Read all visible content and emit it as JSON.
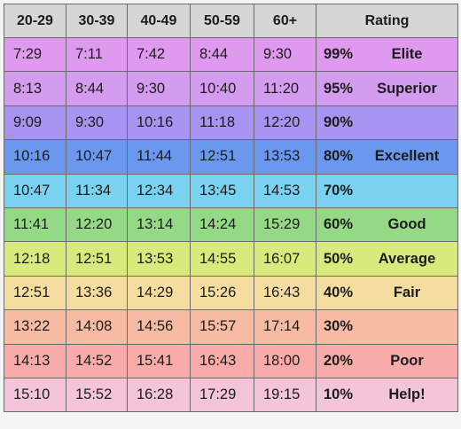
{
  "table": {
    "headers": [
      "20-29",
      "30-39",
      "40-49",
      "50-59",
      "60+",
      "Rating"
    ],
    "rows": [
      {
        "color": "#df99ee",
        "times": [
          "7:29",
          "7:11",
          "7:42",
          "8:44",
          "9:30"
        ],
        "percent": "99%",
        "label": "Elite"
      },
      {
        "color": "#d49cee",
        "times": [
          "8:13",
          "8:44",
          "9:30",
          "10:40",
          "11:20"
        ],
        "percent": "95%",
        "label": "Superior"
      },
      {
        "color": "#a794f1",
        "times": [
          "9:09",
          "9:30",
          "10:16",
          "11:18",
          "12:20"
        ],
        "percent": "90%",
        "label": ""
      },
      {
        "color": "#6a98ef",
        "times": [
          "10:16",
          "10:47",
          "11:44",
          "12:51",
          "13:53"
        ],
        "percent": "80%",
        "label": "Excellent"
      },
      {
        "color": "#79d2f0",
        "times": [
          "10:47",
          "11:34",
          "12:34",
          "13:45",
          "14:53"
        ],
        "percent": "70%",
        "label": ""
      },
      {
        "color": "#95d886",
        "times": [
          "11:41",
          "12:20",
          "13:14",
          "14:24",
          "15:29"
        ],
        "percent": "60%",
        "label": "Good"
      },
      {
        "color": "#d9ea7d",
        "times": [
          "12:18",
          "12:51",
          "13:53",
          "14:55",
          "16:07"
        ],
        "percent": "50%",
        "label": "Average"
      },
      {
        "color": "#f5dda0",
        "times": [
          "12:51",
          "13:36",
          "14:29",
          "15:26",
          "16:43"
        ],
        "percent": "40%",
        "label": "Fair"
      },
      {
        "color": "#f7bba4",
        "times": [
          "13:22",
          "14:08",
          "14:56",
          "15:57",
          "17:14"
        ],
        "percent": "30%",
        "label": ""
      },
      {
        "color": "#f8aba9",
        "times": [
          "14:13",
          "14:52",
          "15:41",
          "16:43",
          "18:00"
        ],
        "percent": "20%",
        "label": "Poor"
      },
      {
        "color": "#f4c4d9",
        "times": [
          "15:10",
          "15:52",
          "16:28",
          "17:29",
          "19:15"
        ],
        "percent": "10%",
        "label": "Help!"
      }
    ]
  }
}
